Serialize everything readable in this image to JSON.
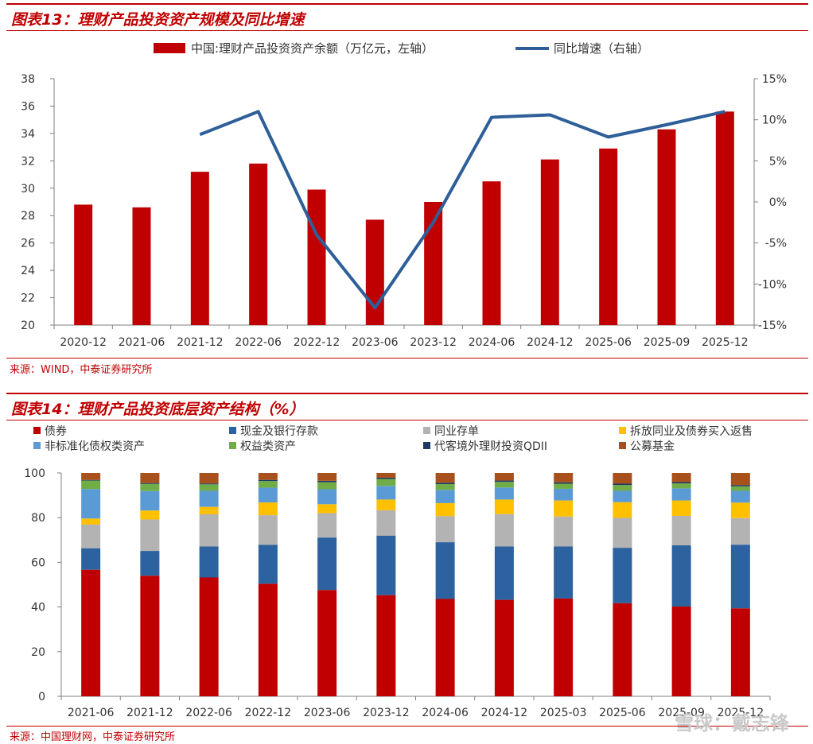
{
  "figure13": {
    "title": "图表13：理财产品投资资产规模及同比增速",
    "source": "来源：WIND，中泰证券研究所"
  },
  "figure14": {
    "title": "图表14：理财产品投资底层资产结构（%）",
    "source": "来源：中国理财网，中泰证券研究所"
  },
  "watermark": "雪球：戴志锋",
  "colors": {
    "title_red": "#c00000",
    "bar_red": "#c00000",
    "line_blue": "#2e5f99"
  },
  "chart_data": [
    {
      "type": "bar",
      "categories": [
        "2020-12",
        "2021-06",
        "2021-12",
        "2022-06",
        "2022-12",
        "2023-06",
        "2023-12",
        "2024-06",
        "2024-12",
        "2025-06",
        "2025-09",
        "2025-12"
      ],
      "series": [
        {
          "name": "中国:理财产品投资资产余额（万亿元，左轴）",
          "kind": "bar",
          "axis": "left",
          "color": "#c00000",
          "values": [
            28.8,
            28.6,
            31.2,
            31.8,
            29.9,
            27.7,
            29.0,
            30.5,
            32.1,
            32.9,
            34.3,
            35.6
          ]
        },
        {
          "name": "同比增速（右轴）",
          "kind": "line",
          "axis": "right",
          "color": "#2e5f99",
          "values": [
            null,
            null,
            8.2,
            11.0,
            -4.0,
            -12.9,
            -2.5,
            10.3,
            10.6,
            7.9,
            9.4,
            11.0
          ]
        }
      ],
      "y_left": {
        "min": 20,
        "max": 38,
        "ticks": [
          "20",
          "22",
          "24",
          "26",
          "28",
          "30",
          "32",
          "34",
          "36",
          "38"
        ]
      },
      "y_right": {
        "min": -15,
        "max": 15,
        "ticks": [
          "-15%",
          "-10%",
          "-5%",
          "0%",
          "5%",
          "10%",
          "15%"
        ]
      },
      "legend_position": "top"
    },
    {
      "type": "bar",
      "stacked": true,
      "categories": [
        "2021-06",
        "2021-12",
        "2022-06",
        "2022-12",
        "2023-06",
        "2023-12",
        "2024-06",
        "2024-12",
        "2025-03",
        "2025-06",
        "2025-09",
        "2025-12"
      ],
      "series": [
        {
          "name": "债券",
          "color": "#c00000",
          "values": [
            56.7,
            54.0,
            53.2,
            50.4,
            47.6,
            45.3,
            43.6,
            43.2,
            43.8,
            41.7,
            40.2,
            39.4
          ]
        },
        {
          "name": "现金及银行存款",
          "color": "#2c62a0",
          "values": [
            9.6,
            11.1,
            13.9,
            17.4,
            23.5,
            26.6,
            25.4,
            23.9,
            23.3,
            24.8,
            27.4,
            28.5
          ]
        },
        {
          "name": "同业存单",
          "color": "#b3b3b3",
          "values": [
            10.6,
            14.1,
            14.4,
            13.3,
            10.9,
            11.4,
            11.7,
            14.5,
            13.4,
            13.4,
            13.2,
            11.9
          ]
        },
        {
          "name": "拆放同业及债券买入返售",
          "color": "#ffc000",
          "values": [
            2.7,
            4.0,
            3.3,
            5.7,
            4.0,
            4.8,
            5.8,
            6.5,
            7.2,
            7.0,
            6.9,
            6.9
          ]
        },
        {
          "name": "非标准化债权类资产",
          "color": "#5b9bd5",
          "values": [
            13.2,
            8.7,
            7.2,
            6.6,
            6.7,
            6.1,
            5.9,
            5.4,
            5.2,
            5.1,
            5.4,
            5.3
          ]
        },
        {
          "name": "权益类资产",
          "color": "#70ad47",
          "values": [
            3.8,
            3.2,
            2.9,
            3.0,
            3.2,
            3.1,
            2.6,
            2.5,
            2.3,
            2.6,
            2.2,
            2.0
          ]
        },
        {
          "name": "代客境外理财投资QDII",
          "color": "#1f3864",
          "values": [
            0.3,
            0.4,
            0.4,
            0.5,
            0.6,
            0.6,
            0.6,
            0.6,
            0.6,
            0.6,
            0.6,
            0.6
          ]
        },
        {
          "name": "公募基金",
          "color": "#a9511d",
          "values": [
            3.1,
            4.5,
            4.7,
            3.1,
            3.5,
            2.1,
            4.4,
            3.4,
            4.2,
            4.8,
            4.1,
            5.4
          ]
        }
      ],
      "y": {
        "min": 0,
        "max": 100,
        "ticks": [
          "0",
          "20",
          "40",
          "60",
          "80",
          "100"
        ]
      },
      "legend_position": "top"
    }
  ]
}
